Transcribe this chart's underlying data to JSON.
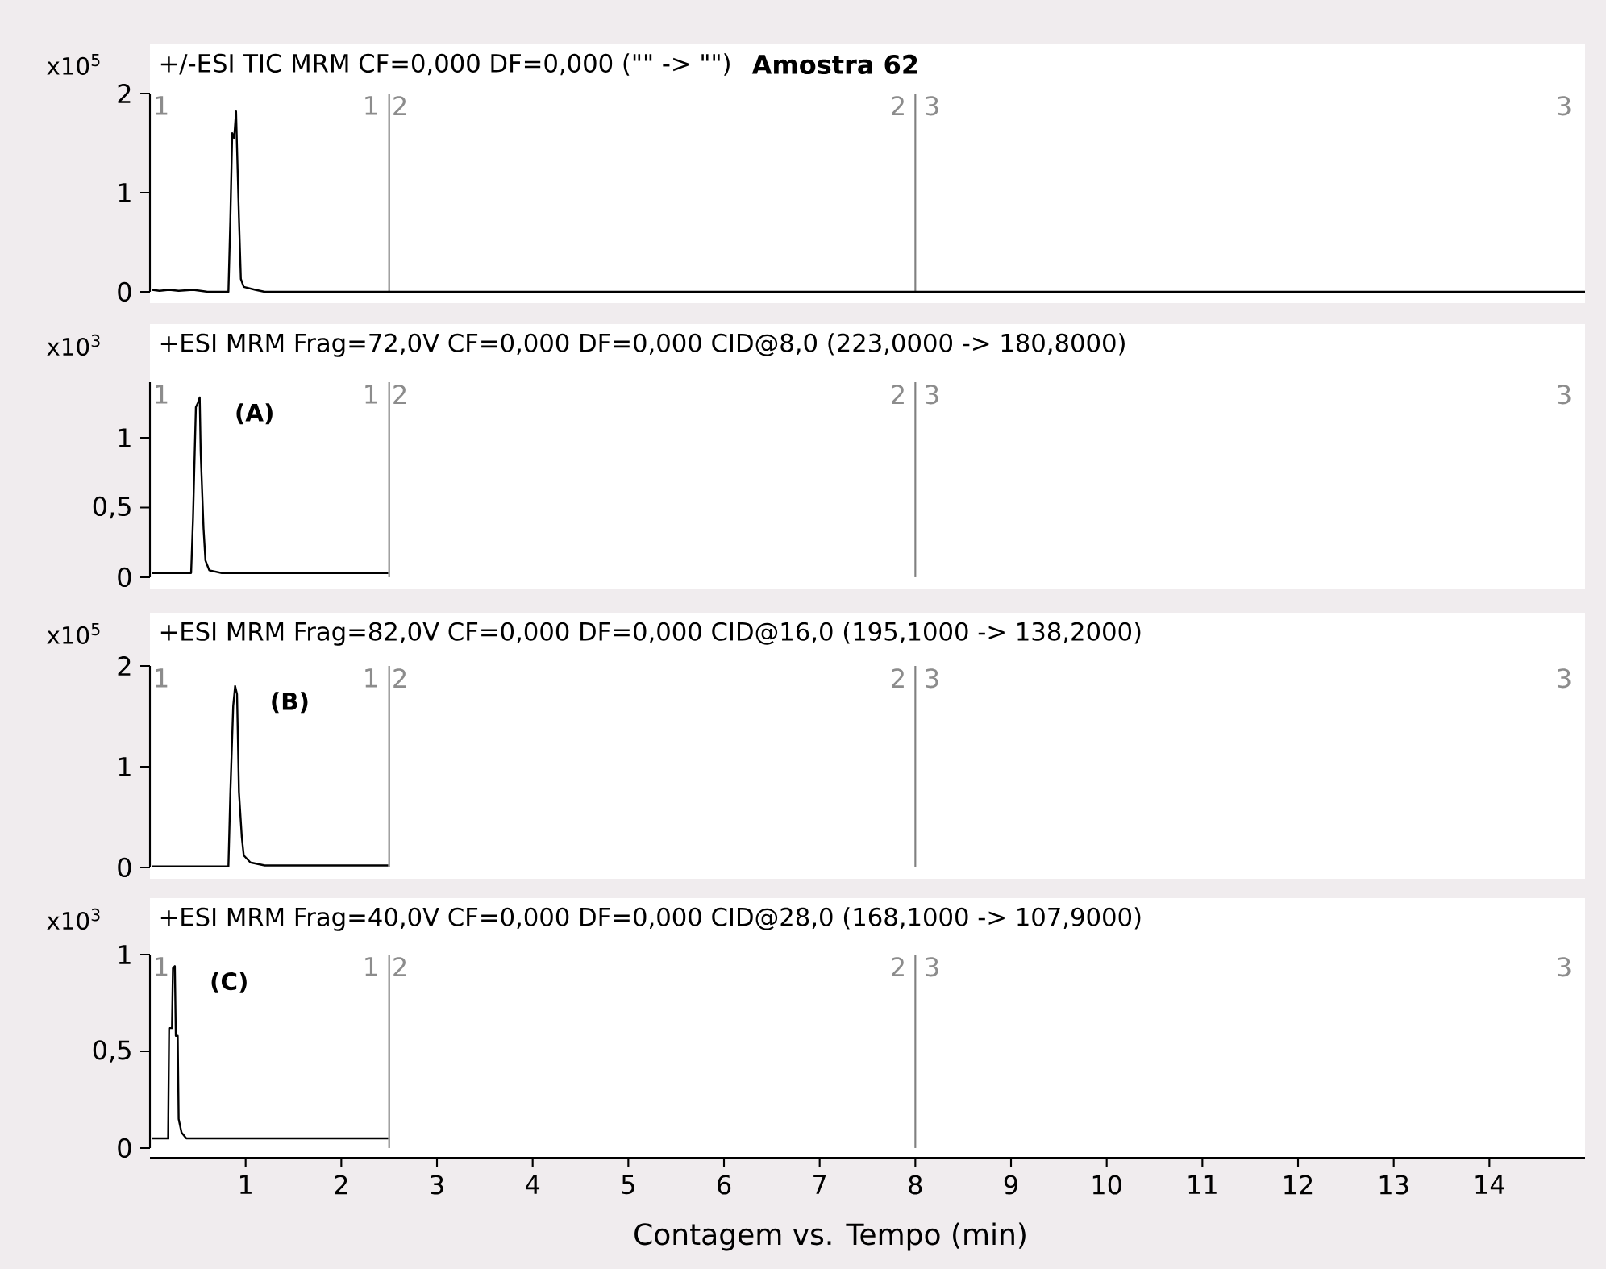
{
  "chart_data": [
    {
      "type": "line",
      "title": "+/-ESI TIC MRM CF=0,000 DF=0,000 (\"\" -> \"\")",
      "subtitle": "Amostra 62",
      "ylabel": "x10$^{5}$",
      "xlim": [
        0,
        15
      ],
      "ylim": [
        0,
        2
      ],
      "yticks": [
        0,
        1,
        2
      ],
      "tick_labels": "y",
      "series": [
        {
          "color": "#000000",
          "x": [
            0.02,
            0.1,
            0.2,
            0.3,
            0.45,
            0.6,
            0.82,
            0.84,
            0.86,
            0.88,
            0.9,
            0.91,
            0.93,
            0.95,
            0.98,
            1.1,
            1.2,
            15
          ],
          "values": [
            0.02,
            0.01,
            0.02,
            0.01,
            0.02,
            0.0,
            0.0,
            0.72,
            1.6,
            1.55,
            1.82,
            1.45,
            0.75,
            0.13,
            0.05,
            0.02,
            0.0,
            0.0
          ]
        }
      ],
      "ref_lines": [
        {
          "axis": "x",
          "value": 2.5,
          "color": "#808080"
        },
        {
          "axis": "x",
          "value": 8,
          "color": "#808080"
        }
      ],
      "annotations": [
        "1",
        "1",
        "2",
        "2",
        "3",
        "3"
      ]
    },
    {
      "type": "line",
      "title": "+ESI MRM Frag=72,0V CF=0,000 DF=0,000 CID@8,0 (223,0000 -> 180,8000)",
      "ylabel": "x10$^{3}$",
      "xlim": [
        0,
        15
      ],
      "ylim": [
        0,
        1.4
      ],
      "yticks": [
        0,
        {
          "value": 0.5,
          "label": "0,5"
        },
        1
      ],
      "tick_labels": "y",
      "series": [
        {
          "color": "#000000",
          "x": [
            0.02,
            0.43,
            0.45,
            0.48,
            0.5,
            0.52,
            0.53,
            0.56,
            0.58,
            0.62,
            0.75,
            2.49
          ],
          "values": [
            0.03,
            0.03,
            0.42,
            1.22,
            1.25,
            1.29,
            0.9,
            0.35,
            0.12,
            0.05,
            0.03,
            0.03
          ]
        }
      ],
      "ref_lines": [
        {
          "axis": "x",
          "value": 2.5,
          "color": "#808080"
        },
        {
          "axis": "x",
          "value": 8,
          "color": "#808080"
        }
      ],
      "annotations": [
        "1",
        "1",
        "2",
        "2",
        "3",
        "3",
        {
          "text": "(A)",
          "x": 0.52,
          "y": 1.29
        }
      ]
    },
    {
      "type": "line",
      "title": "+ESI MRM Frag=82,0V CF=0,000 DF=0,000 CID@16,0 (195,1000 -> 138,2000)",
      "ylabel": "x10$^{5}$",
      "xlim": [
        0,
        15
      ],
      "ylim": [
        0,
        2
      ],
      "yticks": [
        0,
        1,
        2
      ],
      "tick_labels": "y",
      "series": [
        {
          "color": "#000000",
          "x": [
            0.02,
            0.82,
            0.84,
            0.87,
            0.89,
            0.91,
            0.93,
            0.96,
            0.98,
            1.05,
            1.2,
            2.49
          ],
          "values": [
            0.01,
            0.01,
            0.73,
            1.6,
            1.8,
            1.72,
            0.75,
            0.3,
            0.12,
            0.05,
            0.02,
            0.02
          ]
        }
      ],
      "ref_lines": [
        {
          "axis": "x",
          "value": 2.5,
          "color": "#808080"
        },
        {
          "axis": "x",
          "value": 8,
          "color": "#808080"
        }
      ],
      "annotations": [
        "1",
        "1",
        "2",
        "2",
        "3",
        "3",
        {
          "text": "(B)",
          "x": 0.89,
          "y": 1.8
        }
      ]
    },
    {
      "type": "line",
      "title": "+ESI MRM Frag=40,0V CF=0,000 DF=0,000 CID@28,0 (168,1000 -> 107,9000)",
      "ylabel": "x10$^{3}$",
      "xlabel": "Contagem vs. Tempo (min)",
      "xlim": [
        0,
        15
      ],
      "xticks": [
        1,
        2,
        3,
        4,
        5,
        6,
        7,
        8,
        9,
        10,
        11,
        12,
        13,
        14
      ],
      "ylim": [
        0,
        1
      ],
      "yticks": [
        0,
        {
          "value": 0.5,
          "label": "0,5"
        },
        1
      ],
      "series": [
        {
          "color": "#000000",
          "x": [
            0.02,
            0.19,
            0.2,
            0.23,
            0.24,
            0.26,
            0.27,
            0.29,
            0.3,
            0.33,
            0.38,
            2.49
          ],
          "values": [
            0.05,
            0.05,
            0.62,
            0.62,
            0.93,
            0.94,
            0.58,
            0.58,
            0.15,
            0.08,
            0.05,
            0.05
          ]
        }
      ],
      "ref_lines": [
        {
          "axis": "x",
          "value": 2.5,
          "color": "#808080"
        },
        {
          "axis": "x",
          "value": 8,
          "color": "#808080"
        }
      ],
      "annotations": [
        "1",
        "1",
        "2",
        "2",
        "3",
        "3",
        {
          "text": "(C)",
          "x": 0.26,
          "y": 0.94
        }
      ]
    }
  ]
}
